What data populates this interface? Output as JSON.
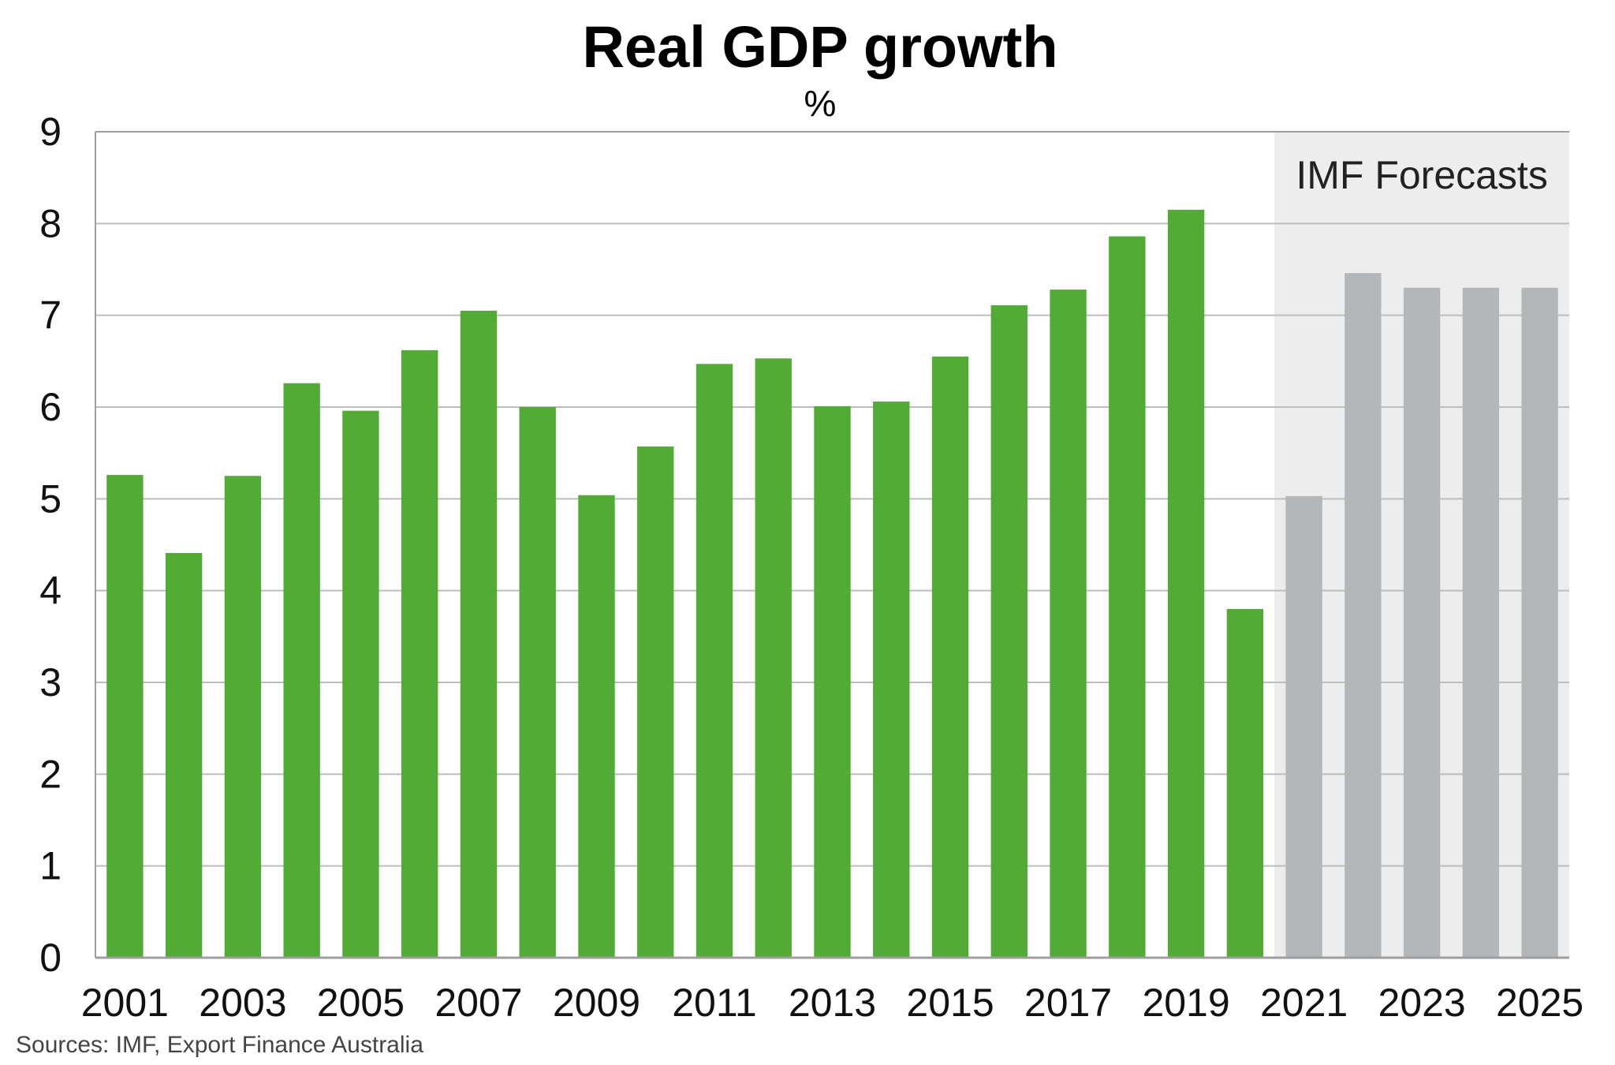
{
  "chart_data": {
    "type": "bar",
    "title": "Real GDP growth",
    "subtitle": "%",
    "xlabel": "",
    "ylabel": "",
    "source": "Sources: IMF, Export Finance Australia",
    "ylim": [
      0,
      9
    ],
    "yticks": [
      "0",
      "1",
      "2",
      "3",
      "4",
      "5",
      "6",
      "7",
      "8",
      "9"
    ],
    "categories": [
      "2001",
      "2002",
      "2003",
      "2004",
      "2005",
      "2006",
      "2007",
      "2008",
      "2009",
      "2010",
      "2011",
      "2012",
      "2013",
      "2014",
      "2015",
      "2016",
      "2017",
      "2018",
      "2019",
      "2020",
      "2021",
      "2022",
      "2023",
      "2024",
      "2025"
    ],
    "xtick_labels": [
      "2001",
      "2003",
      "2005",
      "2007",
      "2009",
      "2011",
      "2013",
      "2015",
      "2017",
      "2019",
      "2021",
      "2023",
      "2025"
    ],
    "values": [
      5.26,
      4.41,
      5.25,
      6.26,
      5.96,
      6.62,
      7.05,
      6.0,
      5.04,
      5.57,
      6.47,
      6.53,
      6.01,
      6.06,
      6.55,
      7.11,
      7.28,
      7.86,
      8.15,
      3.8,
      5.03,
      7.46,
      7.3,
      7.3,
      7.3
    ],
    "forecast_start": "2021",
    "annotation": "IMF Forecasts",
    "grid": true,
    "colors": {
      "actual": "#52ab34",
      "forecast": "#b4b7b9",
      "forecast_region": "#ededed",
      "grid": "#bdbdbd",
      "axis": "#9e9e9e"
    }
  }
}
